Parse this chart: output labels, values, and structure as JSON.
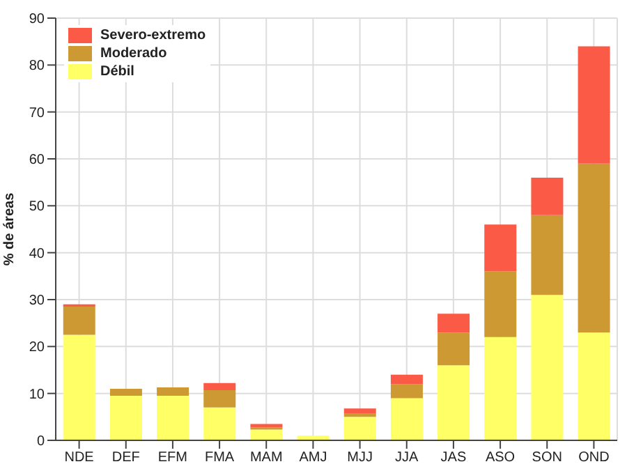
{
  "chart_data": {
    "type": "bar",
    "stacked": true,
    "ylabel": "% de áreas",
    "categories": [
      "NDE",
      "DEF",
      "EFM",
      "FMA",
      "MAM",
      "AMJ",
      "MJJ",
      "JJA",
      "JAS",
      "ASO",
      "SON",
      "OND"
    ],
    "series": [
      {
        "name": "Débil",
        "color": "#ffff66",
        "values": [
          22.5,
          9.5,
          9.5,
          7,
          2.3,
          1,
          5,
          9,
          16,
          22,
          31,
          23
        ]
      },
      {
        "name": "Moderado",
        "color": "#cc9933",
        "values": [
          6,
          1.5,
          1.8,
          3.7,
          0.5,
          0,
          0.8,
          3,
          7,
          14,
          17,
          36
        ]
      },
      {
        "name": "Severo-extremo",
        "color": "#fa5a46",
        "values": [
          0.5,
          0,
          0,
          1.5,
          0.7,
          0,
          1,
          2,
          4,
          10,
          8,
          25
        ]
      }
    ],
    "ylim": [
      0,
      90
    ],
    "yticks": [
      0,
      10,
      20,
      30,
      40,
      50,
      60,
      70,
      80,
      90
    ],
    "grid": true,
    "legend": "top left"
  }
}
